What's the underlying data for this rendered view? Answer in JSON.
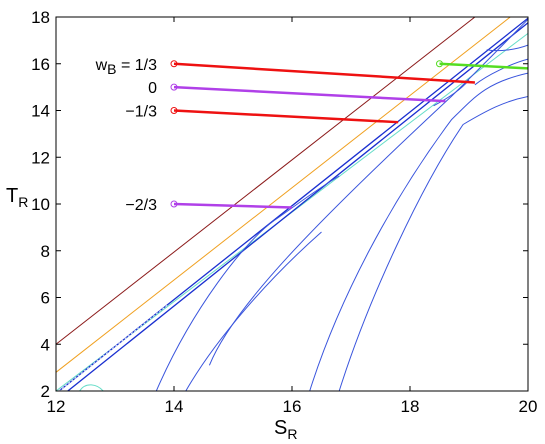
{
  "chart_data": {
    "type": "line",
    "xlabel": {
      "main": "S",
      "sub": "R"
    },
    "ylabel": {
      "main": "T",
      "sub": "R"
    },
    "xlim": [
      12,
      20
    ],
    "ylim": [
      2,
      18
    ],
    "xticks": [
      "12",
      "14",
      "16",
      "18",
      "20"
    ],
    "yticks": [
      "2",
      "4",
      "6",
      "8",
      "10",
      "12",
      "14",
      "16",
      "18"
    ],
    "grid": false,
    "colors": {
      "red": "#ee1111",
      "purple": "#b040e8",
      "green": "#55dd22",
      "darkred": "#8b1a1a",
      "orange": "#f0a020",
      "cyan": "#66ddc8",
      "blue": "#1a2fd0",
      "lightblue": "#3a55dd"
    },
    "diagonal_lines": [
      {
        "color": "darkred",
        "points": [
          [
            12,
            4
          ],
          [
            19.1,
            18
          ]
        ]
      },
      {
        "color": "orange",
        "points": [
          [
            12,
            2.8
          ],
          [
            19.7,
            18
          ]
        ]
      },
      {
        "color": "cyan",
        "points": [
          [
            12,
            2
          ],
          [
            20,
            17.3
          ]
        ]
      }
    ],
    "labels": [
      {
        "text": "w",
        "sub": "B",
        "suffix": " = 1/3",
        "y": 16
      },
      {
        "text": "0",
        "y": 15
      },
      {
        "text": "−1/3",
        "y": 14
      },
      {
        "text": "−2/3",
        "y": 10
      }
    ],
    "series": [
      {
        "color": "red",
        "points": [
          [
            14,
            16
          ],
          [
            19.1,
            15.2
          ]
        ]
      },
      {
        "color": "purple",
        "points": [
          [
            14,
            15
          ],
          [
            18.6,
            14.4
          ]
        ]
      },
      {
        "color": "red",
        "points": [
          [
            14,
            14
          ],
          [
            17.8,
            13.5
          ]
        ]
      },
      {
        "color": "purple",
        "points": [
          [
            14,
            10
          ],
          [
            16,
            9.85
          ]
        ]
      },
      {
        "color": "green",
        "points": [
          [
            18.5,
            16
          ],
          [
            20,
            15.8
          ]
        ]
      }
    ]
  }
}
